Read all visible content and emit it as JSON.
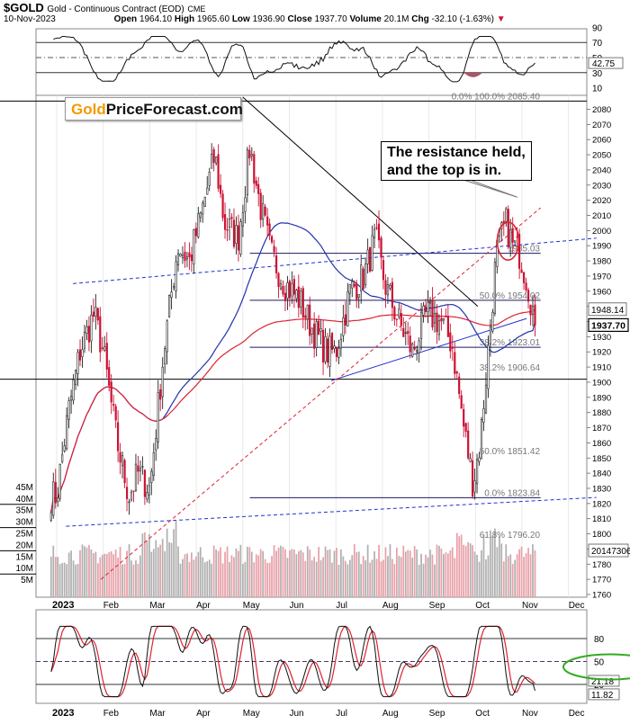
{
  "header": {
    "symbol": "$GOLD",
    "name": "Gold - Continuous Contract (EOD)",
    "exchange": "CME",
    "date": "10-Nov-2023",
    "ohlc": {
      "open_label": "Open",
      "open": "1964.10",
      "high_label": "High",
      "high": "1965.60",
      "low_label": "Low",
      "low": "1936.90",
      "close_label": "Close",
      "close": "1937.70",
      "volume_label": "Volume",
      "volume": "20.1M",
      "chg_label": "Chg",
      "chg": "-32.10 (-1.63%)"
    }
  },
  "logo": {
    "part1": "Gold",
    "part2": "PriceForecast.com"
  },
  "callout": {
    "line1": "The resistance held,",
    "line2": "and the top is in."
  },
  "colors": {
    "up": "#222222",
    "down": "#cc1133",
    "ma_blue": "#2233aa",
    "ma_red": "#dd2233",
    "trend_blue": "#2233cc",
    "oval_green": "#33aa22",
    "vol_gray": "#b0b0b0",
    "vol_pink": "#e8a0a8"
  },
  "chart_data": [
    {
      "id": "rsi",
      "type": "line",
      "title": "RSI",
      "ylim": [
        0,
        100
      ],
      "ticks": [
        "90",
        "70",
        "50",
        "30",
        "10"
      ],
      "tick_values": [
        90,
        70,
        50,
        30,
        10
      ],
      "current_label": "42.75",
      "current": 42.75
    },
    {
      "id": "price",
      "type": "candlestick",
      "title": "Gold - Continuous Contract (EOD)",
      "ylim": [
        1760,
        2090
      ],
      "y_ticks": [
        2080,
        2070,
        2060,
        2050,
        2040,
        2030,
        2020,
        2010,
        2000,
        1990,
        1980,
        1970,
        1960,
        1950,
        1940,
        1930,
        1920,
        1910,
        1900,
        1890,
        1880,
        1870,
        1860,
        1850,
        1840,
        1830,
        1820,
        1810,
        1800,
        1790,
        1780,
        1770,
        1760
      ],
      "x_tick_labels": [
        "2023",
        "Feb",
        "Mar",
        "Apr",
        "May",
        "Jun",
        "Jul",
        "Aug",
        "Sep",
        "Oct",
        "Nov",
        "Dec"
      ],
      "month_anchors": [
        {
          "m": 0,
          "price": 1825
        },
        {
          "m": 0.25,
          "price": 1880
        },
        {
          "m": 0.5,
          "price": 1920
        },
        {
          "m": 0.8,
          "price": 1945
        },
        {
          "m": 1,
          "price": 1920
        },
        {
          "m": 1.3,
          "price": 1860
        },
        {
          "m": 1.55,
          "price": 1825
        },
        {
          "m": 1.75,
          "price": 1840
        },
        {
          "m": 2,
          "price": 1830
        },
        {
          "m": 2.3,
          "price": 1920
        },
        {
          "m": 2.6,
          "price": 1990
        },
        {
          "m": 2.85,
          "price": 1980
        },
        {
          "m": 3.1,
          "price": 2010
        },
        {
          "m": 3.4,
          "price": 2050
        },
        {
          "m": 3.6,
          "price": 2005
        },
        {
          "m": 3.9,
          "price": 1995
        },
        {
          "m": 4.15,
          "price": 2055
        },
        {
          "m": 4.35,
          "price": 2020
        },
        {
          "m": 4.6,
          "price": 1985
        },
        {
          "m": 4.9,
          "price": 1965
        },
        {
          "m": 5.2,
          "price": 1955
        },
        {
          "m": 5.5,
          "price": 1935
        },
        {
          "m": 5.8,
          "price": 1920
        },
        {
          "m": 6.0,
          "price": 1920
        },
        {
          "m": 6.3,
          "price": 1960
        },
        {
          "m": 6.6,
          "price": 1970
        },
        {
          "m": 6.85,
          "price": 1995
        },
        {
          "m": 7.05,
          "price": 1965
        },
        {
          "m": 7.35,
          "price": 1940
        },
        {
          "m": 7.65,
          "price": 1920
        },
        {
          "m": 7.95,
          "price": 1945
        },
        {
          "m": 8.25,
          "price": 1940
        },
        {
          "m": 8.5,
          "price": 1925
        },
        {
          "m": 8.75,
          "price": 1870
        },
        {
          "m": 8.95,
          "price": 1833
        },
        {
          "m": 9.1,
          "price": 1860
        },
        {
          "m": 9.3,
          "price": 1930
        },
        {
          "m": 9.45,
          "price": 1985
        },
        {
          "m": 9.65,
          "price": 2005
        },
        {
          "m": 9.8,
          "price": 1990
        },
        {
          "m": 9.95,
          "price": 1985
        },
        {
          "m": 10.1,
          "price": 1968
        },
        {
          "m": 10.25,
          "price": 1945
        }
      ],
      "labels": {
        "last_price": "1937.70",
        "red_ma": "1948.14"
      },
      "last_price": 1937.7,
      "red_ma": 1948.14,
      "fib_levels": [
        {
          "label": "0.0% 100.0% 2085.40",
          "value": 2085.4,
          "show_line": false
        },
        {
          "label": "1985.03",
          "value": 1985.03,
          "show_line": true
        },
        {
          "label": "50.0% 1954.02",
          "value": 1954.02,
          "show_line": true
        },
        {
          "label": "38.2% 1923.01",
          "value": 1923.01,
          "show_line": true
        },
        {
          "label": "38.2% 1906.64",
          "value": 1906.64,
          "show_line": false
        },
        {
          "label": "50.0% 1851.42",
          "value": 1851.42,
          "show_line": false
        },
        {
          "label": "0.0% 1823.84",
          "value": 1823.84,
          "show_line": true
        },
        {
          "label": "61.8% 1796.20",
          "value": 1796.2,
          "show_line": false
        }
      ],
      "horizontal_levels": [
        2085.4,
        1902
      ],
      "trendlines": [
        {
          "name": "declining-resistance",
          "style": "solid",
          "color": "#000000",
          "p1": {
            "m": 4.0,
            "v": 2088
          },
          "p2": {
            "m": 9.05,
            "v": 1950
          }
        },
        {
          "name": "blue-support",
          "style": "solid",
          "color": "#2233cc",
          "p1": {
            "m": 5.9,
            "v": 1901
          },
          "p2": {
            "m": 10.1,
            "v": 1942
          }
        },
        {
          "name": "blue-dashed-upper",
          "style": "dashed",
          "color": "#2233cc",
          "p1": {
            "m": 0.35,
            "v": 1965
          },
          "p2": {
            "m": 11.6,
            "v": 1995
          }
        },
        {
          "name": "blue-dashed-lower",
          "style": "dashed",
          "color": "#2233cc",
          "p1": {
            "m": 0.2,
            "v": 1805
          },
          "p2": {
            "m": 11.6,
            "v": 1824
          }
        },
        {
          "name": "red-dashed",
          "style": "dashed",
          "color": "#dd2233",
          "p1": {
            "m": 0.95,
            "v": 1770
          },
          "p2": {
            "m": 10.4,
            "v": 2015
          }
        }
      ],
      "volume": {
        "ylim": [
          0,
          50
        ],
        "ticks": [
          "45M",
          "40M",
          "35M",
          "30M",
          "25M",
          "20M",
          "15M",
          "10M",
          "5M"
        ],
        "tick_values": [
          45,
          40,
          35,
          30,
          25,
          20,
          15,
          10,
          5
        ],
        "current_label": "20147306",
        "current": 20.15
      }
    },
    {
      "id": "stochastic",
      "type": "line",
      "title": "Stochastic",
      "ylim": [
        0,
        100
      ],
      "ticks": [
        "80",
        "50",
        "20"
      ],
      "tick_values": [
        80,
        50,
        20
      ],
      "current_labels": [
        "21.18",
        "11.82"
      ],
      "current": [
        21.18,
        11.82
      ]
    }
  ]
}
